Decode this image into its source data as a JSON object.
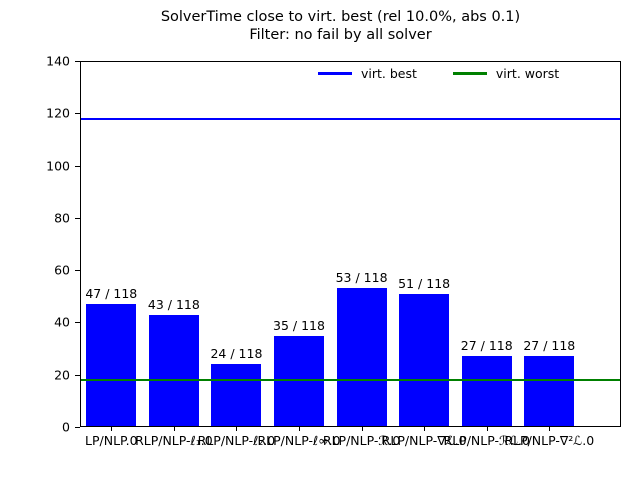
{
  "chart_data": {
    "type": "bar",
    "title": "SolverTime close to virt. best (rel 10.0%, abs 0.1)",
    "subtitle": "Filter: no fail by all solver",
    "categories": [
      "LP/NLP.0",
      "RLP/NLP-ℓ₁.0",
      "RLP/NLP-ℓ₂.0",
      "RLP/NLP-ℓ∞.0",
      "RLP/NLP-ℛ.0",
      "RLP/NLP-∇ℒ.0",
      "RLP/NLP-ℛℒ.0",
      "RLP/NLP-∇²ℒ.0"
    ],
    "values": [
      47,
      43,
      24,
      35,
      53,
      51,
      27,
      27
    ],
    "bar_labels": [
      "47 / 118",
      "43 / 118",
      "24 / 118",
      "35 / 118",
      "53 / 118",
      "51 / 118",
      "27 / 118",
      "27 / 118"
    ],
    "total_instances": 118,
    "bar_color": "#0000ff",
    "xlabel": "",
    "ylabel": "",
    "ylim": [
      0,
      140
    ],
    "yticks": [
      0,
      20,
      40,
      60,
      80,
      100,
      120,
      140
    ],
    "grid": false,
    "legend_position": "upper center inside axes, horizontal, frameless",
    "hlines": [
      {
        "label": "virt. best",
        "value": 118,
        "color": "#0000ff"
      },
      {
        "label": "virt. worst",
        "value": 18,
        "color": "#008000"
      }
    ]
  }
}
